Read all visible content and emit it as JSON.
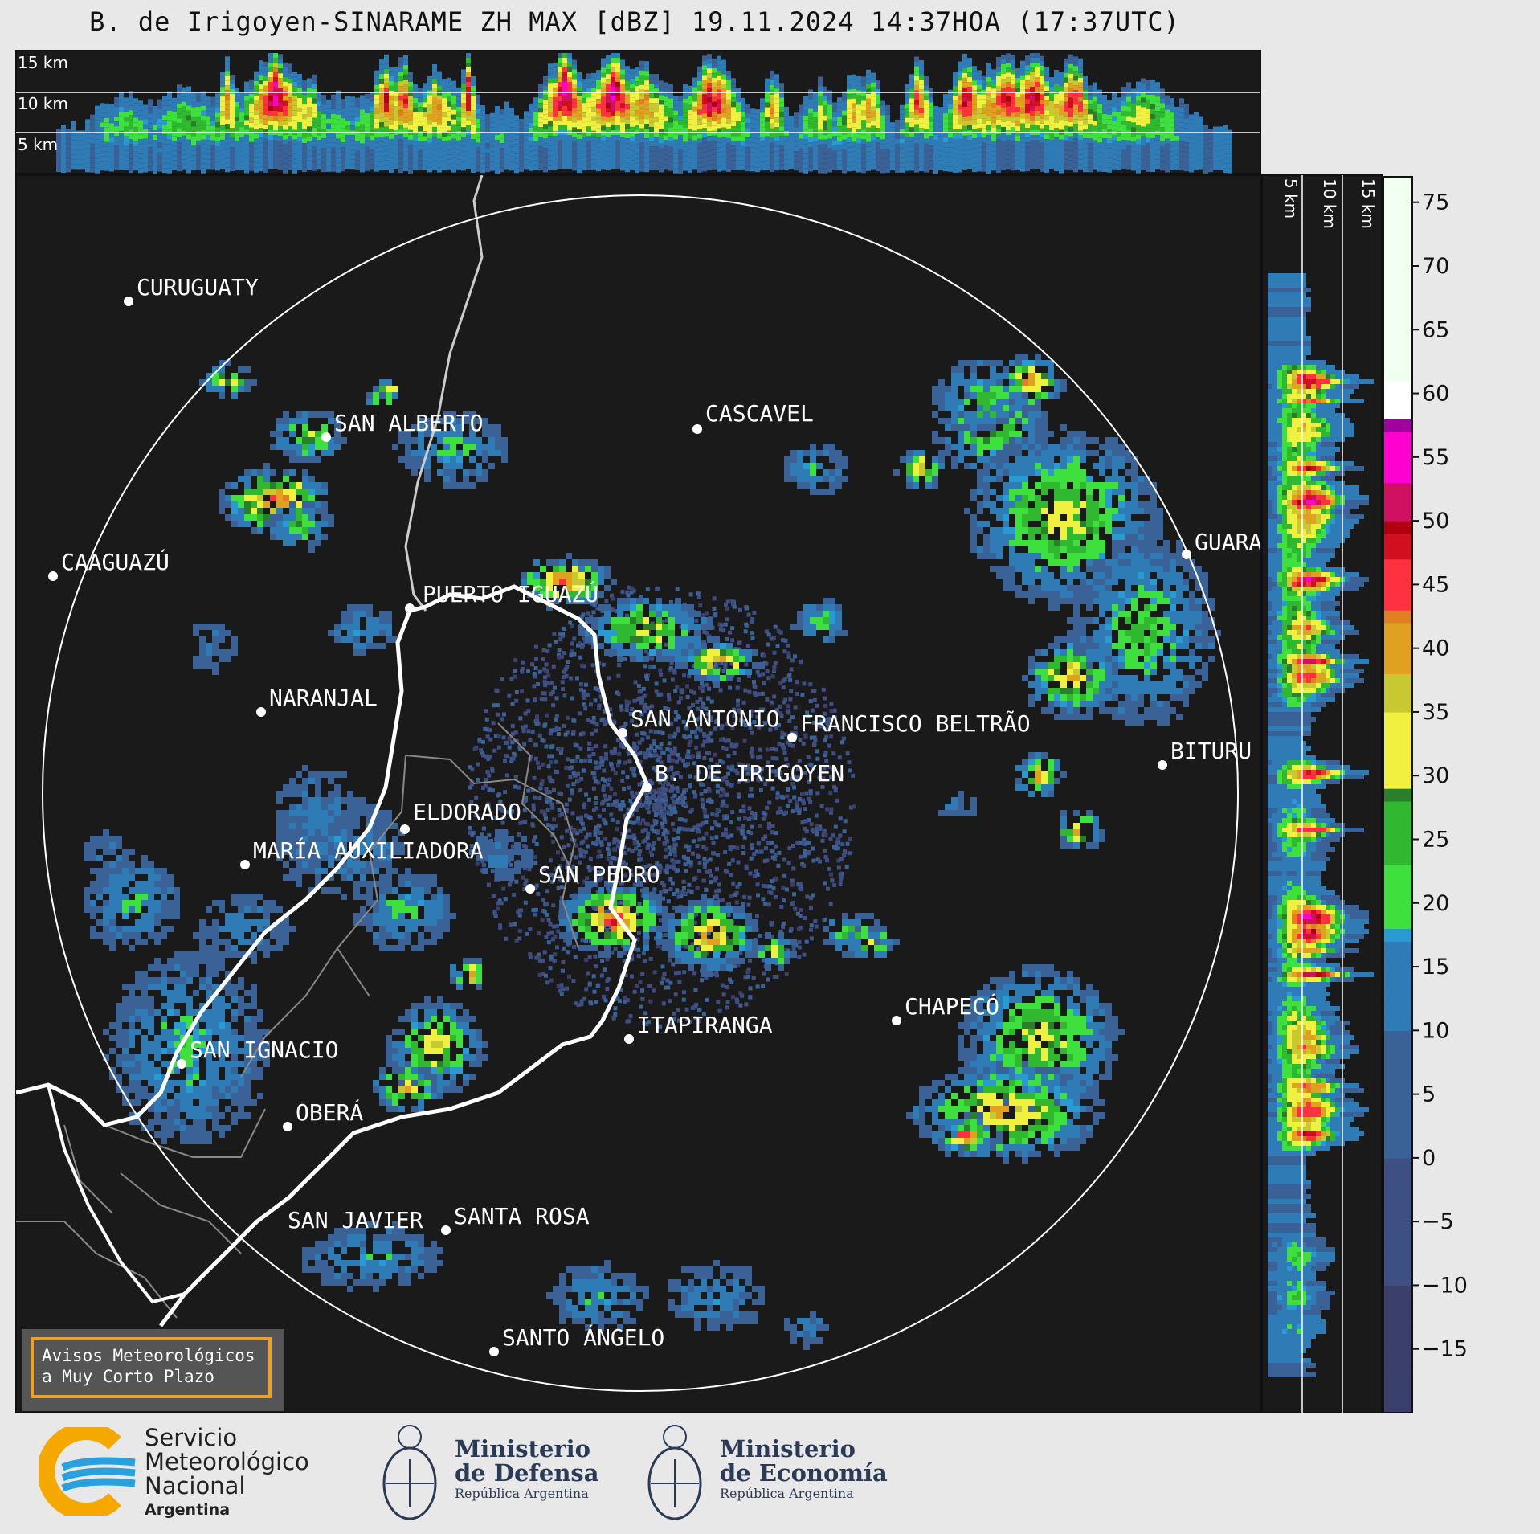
{
  "title": "B. de Irigoyen-SINARAME ZH MAX [dBZ] 19.11.2024 14:37HOA (17:37UTC)",
  "top_profile": {
    "height_labels": [
      "15 km",
      "10 km",
      "5 km"
    ]
  },
  "side_profile": {
    "height_labels": [
      "5 km",
      "10 km",
      "15 km"
    ]
  },
  "colorbar": {
    "unit": "dBZ",
    "ticks": [
      "75",
      "70",
      "65",
      "60",
      "55",
      "50",
      "45",
      "40",
      "35",
      "30",
      "25",
      "20",
      "15",
      "10",
      "5",
      "0",
      "−5",
      "−10",
      "−15"
    ],
    "range": [
      -20,
      77
    ]
  },
  "cities": [
    {
      "name": "CURUGUATY"
    },
    {
      "name": "SAN ALBERTO"
    },
    {
      "name": "CASCAVEL"
    },
    {
      "name": "CAAGUAZÚ"
    },
    {
      "name": "GUARA"
    },
    {
      "name": "PUERTO IGUAZÚ"
    },
    {
      "name": "NARANJAL"
    },
    {
      "name": "SAN ANTONIO"
    },
    {
      "name": "FRANCISCO BELTRÃO"
    },
    {
      "name": "BITURU"
    },
    {
      "name": "B. DE IRIGOYEN"
    },
    {
      "name": "ELDORADO"
    },
    {
      "name": "MARÍA AUXILIADORA"
    },
    {
      "name": "SAN PEDRO"
    },
    {
      "name": "CHAPECÓ"
    },
    {
      "name": "ITAPIRANGA"
    },
    {
      "name": "SAN IGNACIO"
    },
    {
      "name": "OBERÁ"
    },
    {
      "name": "SAN JAVIER"
    },
    {
      "name": "SANTA ROSA"
    },
    {
      "name": "SANTO ÁNGELO"
    }
  ],
  "notice": {
    "line1": "Avisos Meteorológicos",
    "line2": "a Muy Corto Plazo"
  },
  "footer": {
    "smn_line1": "Servicio",
    "smn_line2": "Meteorológico",
    "smn_line3": "Nacional",
    "smn_country": "Argentina",
    "defensa_line1": "Ministerio",
    "defensa_line2": "de Defensa",
    "defensa_sub": "República Argentina",
    "economia_line1": "Ministerio",
    "economia_line2": "de Economía",
    "economia_sub": "República Argentina"
  },
  "colors": {
    "background": "#1a1a1a",
    "page": "#e8e8e8",
    "ring": "#ffffff",
    "border": "#ffffff",
    "accent": "#f0a020"
  },
  "icons": [
    "smn-logo-icon",
    "defensa-coat-of-arms-icon",
    "economia-coat-of-arms-icon"
  ]
}
